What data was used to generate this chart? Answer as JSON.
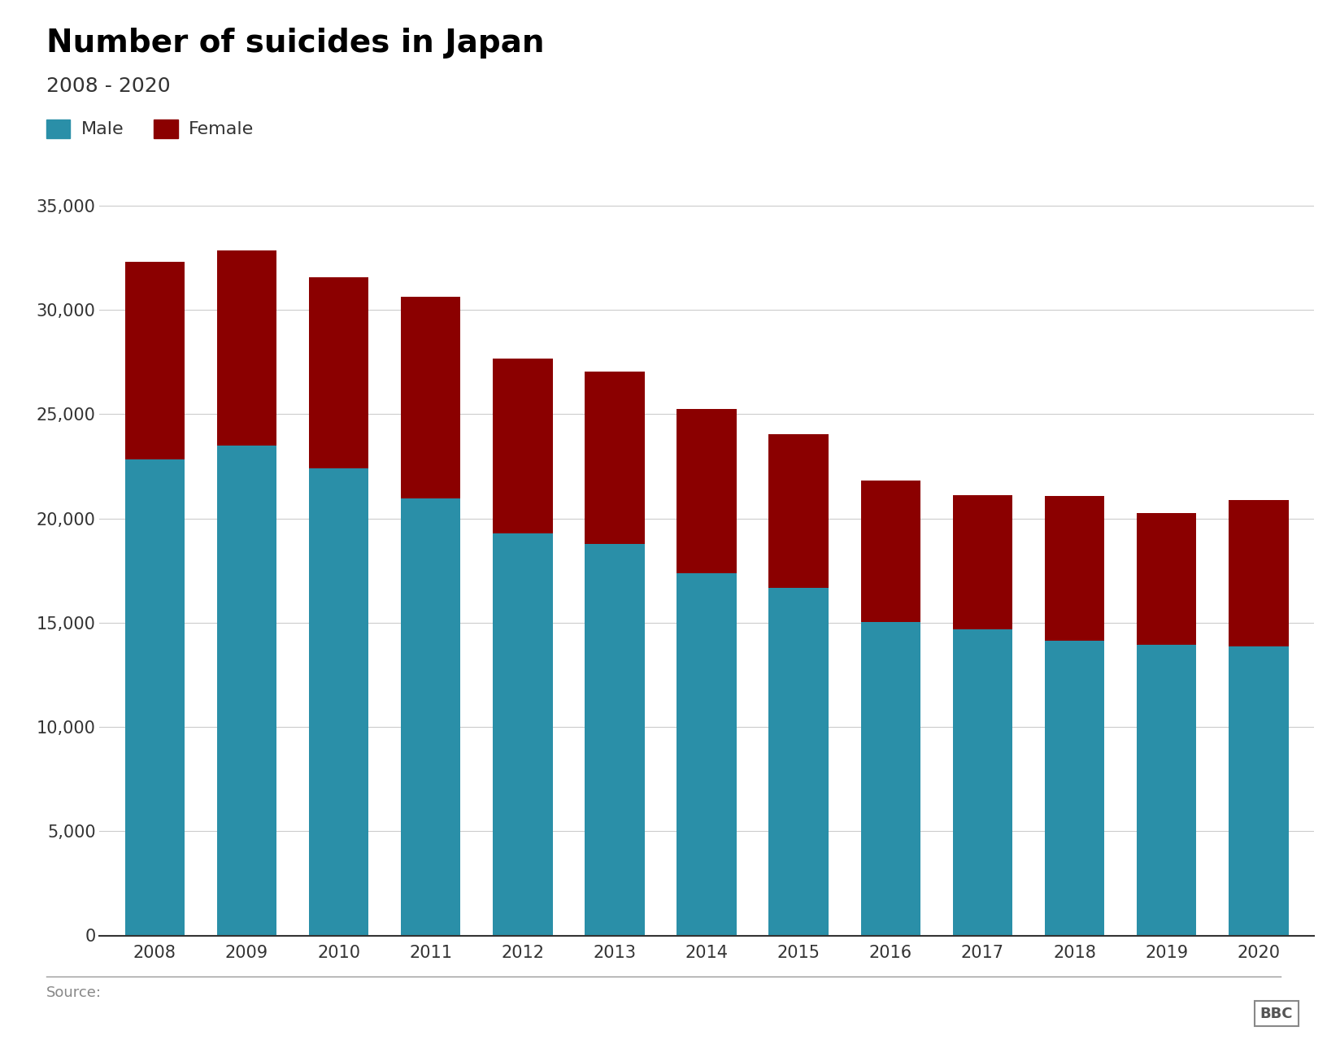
{
  "title": "Number of suicides in Japan",
  "subtitle": "2008 - 2020",
  "years": [
    2008,
    2009,
    2010,
    2011,
    2012,
    2013,
    2014,
    2015,
    2016,
    2017,
    2018,
    2019,
    2020
  ],
  "male": [
    22831,
    23472,
    22401,
    20955,
    19273,
    18787,
    17367,
    16681,
    15017,
    14693,
    14125,
    13937,
    13864
  ],
  "female": [
    9480,
    9373,
    9159,
    9662,
    8400,
    8234,
    7882,
    7364,
    6788,
    6408,
    6942,
    6331,
    7026
  ],
  "male_color": "#2a8fa8",
  "female_color": "#8b0000",
  "ylim": [
    0,
    37000
  ],
  "yticks": [
    0,
    5000,
    10000,
    15000,
    20000,
    25000,
    30000,
    35000
  ],
  "title_fontsize": 28,
  "subtitle_fontsize": 18,
  "tick_fontsize": 15,
  "legend_fontsize": 16,
  "source_text": "Source:",
  "bbc_text": "BBC",
  "background_color": "#ffffff"
}
